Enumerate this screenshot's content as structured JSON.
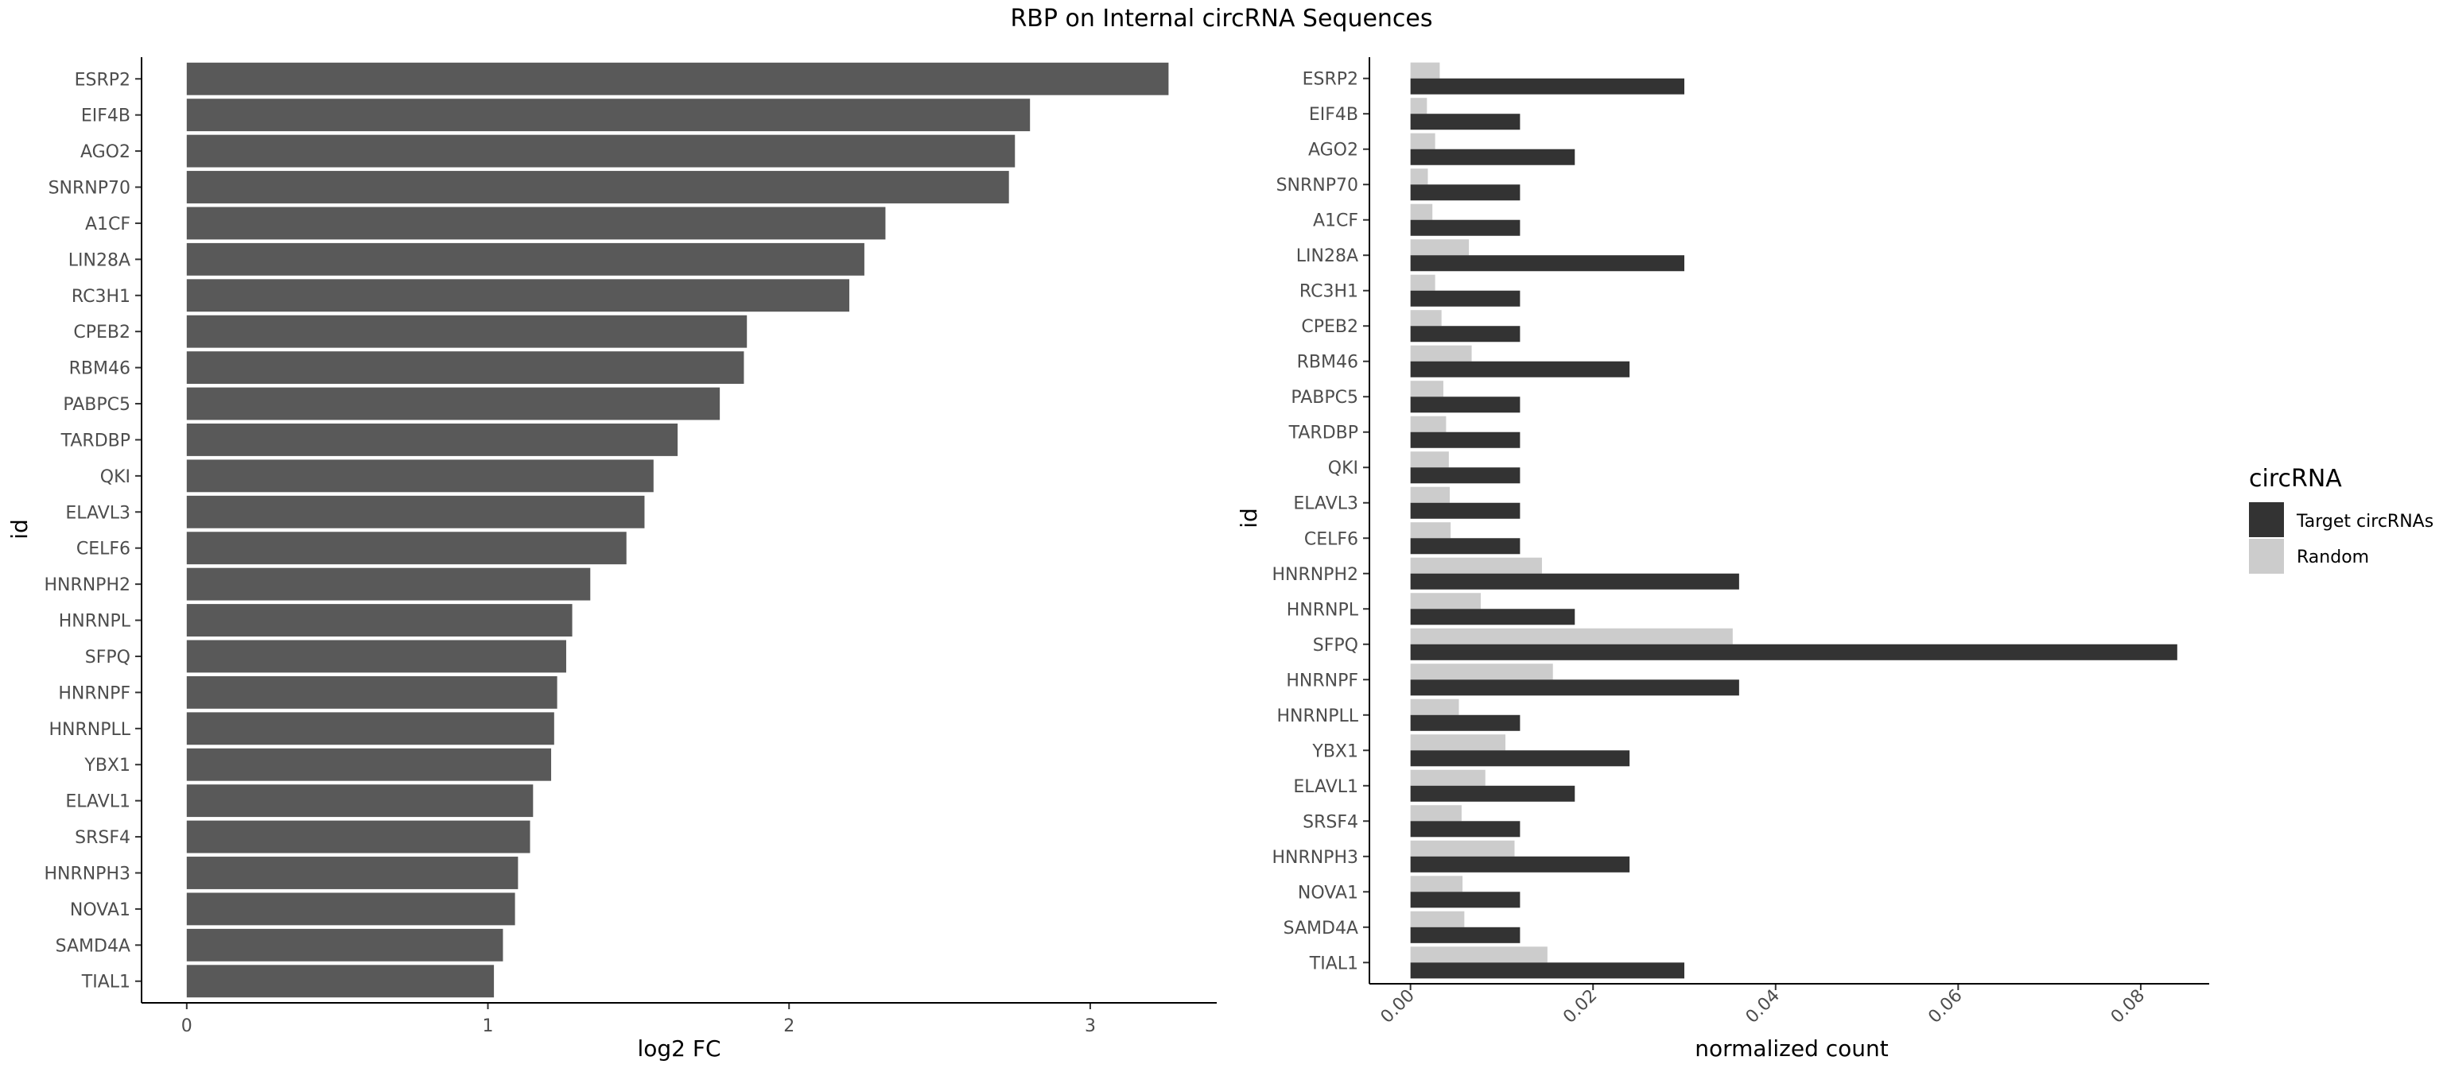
{
  "title": "RBP on Internal circRNA Sequences",
  "colors": {
    "left_bar": "#595959",
    "target": "#333333",
    "random": "#cccccc",
    "axis": "#000000",
    "tick_text": "#4d4d4d"
  },
  "chart_data": [
    {
      "type": "bar",
      "orientation": "horizontal",
      "xlabel": "log2 FC",
      "ylabel": "id",
      "xlim": [
        -0.15,
        3.42
      ],
      "xticks": [
        0,
        1,
        2,
        3
      ],
      "categories": [
        "ESRP2",
        "EIF4B",
        "AGO2",
        "SNRNP70",
        "A1CF",
        "LIN28A",
        "RC3H1",
        "CPEB2",
        "RBM46",
        "PABPC5",
        "TARDBP",
        "QKI",
        "ELAVL3",
        "CELF6",
        "HNRNPH2",
        "HNRNPL",
        "SFPQ",
        "HNRNPF",
        "HNRNPLL",
        "YBX1",
        "ELAVL1",
        "SRSF4",
        "HNRNPH3",
        "NOVA1",
        "SAMD4A",
        "TIAL1"
      ],
      "values": [
        3.26,
        2.8,
        2.75,
        2.73,
        2.32,
        2.25,
        2.2,
        1.86,
        1.85,
        1.77,
        1.63,
        1.55,
        1.52,
        1.46,
        1.34,
        1.28,
        1.26,
        1.23,
        1.22,
        1.21,
        1.15,
        1.14,
        1.1,
        1.09,
        1.05,
        1.02
      ]
    },
    {
      "type": "bar",
      "orientation": "horizontal",
      "grouped": true,
      "xlabel": "normalized count",
      "ylabel": "id",
      "xlim": [
        -0.0045,
        0.0875
      ],
      "xticks": [
        0.0,
        0.02,
        0.04,
        0.06,
        0.08
      ],
      "xtick_labels": [
        "0.00",
        "0.02",
        "0.04",
        "0.06",
        "0.08"
      ],
      "categories": [
        "ESRP2",
        "EIF4B",
        "AGO2",
        "SNRNP70",
        "A1CF",
        "LIN28A",
        "RC3H1",
        "CPEB2",
        "RBM46",
        "PABPC5",
        "TARDBP",
        "QKI",
        "ELAVL3",
        "CELF6",
        "HNRNPH2",
        "HNRNPL",
        "SFPQ",
        "HNRNPF",
        "HNRNPLL",
        "YBX1",
        "ELAVL1",
        "SRSF4",
        "HNRNPH3",
        "NOVA1",
        "SAMD4A",
        "TIAL1"
      ],
      "series": [
        {
          "name": "Target circRNAs",
          "values": [
            0.03,
            0.012,
            0.018,
            0.012,
            0.012,
            0.03,
            0.012,
            0.012,
            0.024,
            0.012,
            0.012,
            0.012,
            0.012,
            0.012,
            0.036,
            0.018,
            0.084,
            0.036,
            0.012,
            0.024,
            0.018,
            0.012,
            0.024,
            0.012,
            0.012,
            0.03
          ]
        },
        {
          "name": "Random",
          "values": [
            0.0032,
            0.0018,
            0.0027,
            0.0019,
            0.0024,
            0.0064,
            0.0027,
            0.0034,
            0.0067,
            0.0036,
            0.0039,
            0.0042,
            0.0043,
            0.0044,
            0.0144,
            0.0077,
            0.0353,
            0.0156,
            0.0053,
            0.0104,
            0.0082,
            0.0056,
            0.0114,
            0.0057,
            0.0059,
            0.015
          ]
        }
      ],
      "legend": {
        "title": "circRNA",
        "position": "right",
        "entries": [
          "Target circRNAs",
          "Random"
        ]
      }
    }
  ]
}
